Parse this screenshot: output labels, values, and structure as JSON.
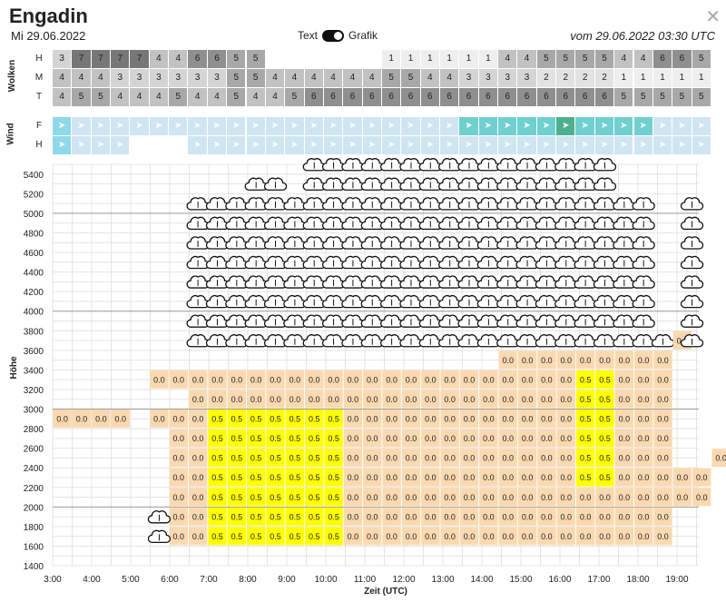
{
  "header": {
    "title": "Engadin",
    "date": "Mi 29.06.2022",
    "toggle_left": "Text",
    "toggle_right": "Grafik",
    "run_info": "vom 29.06.2022 03:30 UTC",
    "close_icon": "close-icon"
  },
  "wolken": {
    "label": "Wolken",
    "rows": [
      {
        "name": "H",
        "values": [
          "3",
          "7",
          "7",
          "7",
          "7",
          "4",
          "4",
          "6",
          "6",
          "5",
          "5",
          "",
          "",
          "",
          "",
          "",
          "",
          "1",
          "1",
          "1",
          "1",
          "1",
          "1",
          "4",
          "4",
          "5",
          "5",
          "5",
          "5",
          "4",
          "4",
          "6",
          "6",
          "5"
        ]
      },
      {
        "name": "M",
        "values": [
          "4",
          "4",
          "4",
          "3",
          "3",
          "3",
          "3",
          "3",
          "3",
          "5",
          "5",
          "4",
          "4",
          "4",
          "4",
          "4",
          "4",
          "5",
          "5",
          "4",
          "4",
          "3",
          "3",
          "3",
          "3",
          "2",
          "2",
          "2",
          "2",
          "1",
          "1",
          "1",
          "1",
          "1"
        ]
      },
      {
        "name": "T",
        "values": [
          "4",
          "5",
          "5",
          "4",
          "4",
          "4",
          "5",
          "4",
          "4",
          "5",
          "4",
          "4",
          "5",
          "6",
          "6",
          "6",
          "6",
          "6",
          "6",
          "6",
          "6",
          "6",
          "6",
          "6",
          "6",
          "6",
          "6",
          "6",
          "6",
          "5",
          "5",
          "5",
          "5",
          "5"
        ]
      }
    ]
  },
  "wind": {
    "label": "Wind",
    "rows": [
      "F",
      "H"
    ]
  },
  "chart_data": {
    "type": "heatmap",
    "xlabel": "Zeit (UTC)",
    "ylabel": "Höhe",
    "x_ticks": [
      "3:00",
      "4:00",
      "5:00",
      "6:00",
      "7:00",
      "8:00",
      "9:00",
      "10:00",
      "11:00",
      "12:00",
      "13:00",
      "14:00",
      "15:00",
      "16:00",
      "17:00",
      "18:00",
      "19:00"
    ],
    "y_ticks": [
      1400,
      1600,
      1800,
      2000,
      2200,
      2400,
      2600,
      2800,
      3000,
      3200,
      3400,
      3600,
      3800,
      4000,
      4200,
      4400,
      4600,
      4800,
      5000,
      5200,
      5400
    ],
    "legend": {
      "cloud": "cloud-icon",
      "thermal": "0.0",
      "strong_thermal": "0.5"
    }
  }
}
